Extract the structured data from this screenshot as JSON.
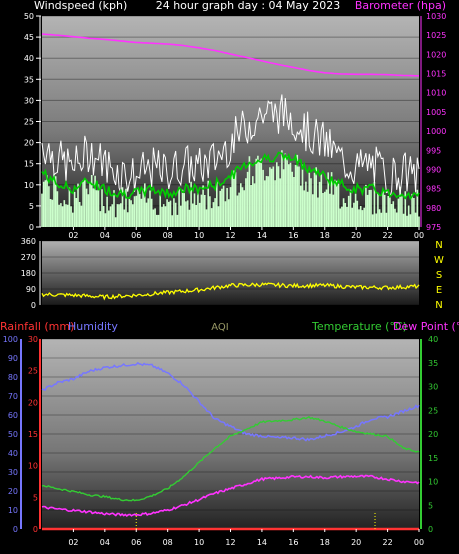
{
  "colors": {
    "wind_axis": "#ffffff",
    "baro": "#ff33ff",
    "wind_gust": "#ffffff",
    "wind_avg": "#00cc00",
    "wind_fill": "#ccffcc",
    "dir": "#ffff00",
    "rain": "#ff3333",
    "humidity": "#7777ff",
    "aqi": "#999966",
    "temp": "#33cc33",
    "dew": "#ff33ff"
  },
  "header": {
    "title": "24 hour graph day : 04 May 2023",
    "wind_label": "Windspeed (kph)",
    "baro_label": "Barometer (hpa)"
  },
  "footer": {
    "rain_label": "Rainfall (mm)",
    "hum_label": "Humidity",
    "aqi_label": "AQI",
    "temp_label": "Temperature (°C)",
    "dew_label": "Dew Point (°C"
  },
  "compass": [
    "N",
    "W",
    "S",
    "E",
    "N"
  ],
  "chart_data": [
    {
      "type": "line",
      "panel": "wind-barometer",
      "title": "24 hour graph day : 04 May 2023",
      "x_ticks": [
        "02",
        "04",
        "06",
        "08",
        "10",
        "12",
        "14",
        "16",
        "18",
        "20",
        "22",
        "00"
      ],
      "left_axis": {
        "label": "Windspeed (kph)",
        "range": [
          0,
          50
        ],
        "ticks": [
          0,
          5,
          10,
          15,
          20,
          25,
          30,
          35,
          40,
          45,
          50
        ]
      },
      "right_axis": {
        "label": "Barometer (hpa)",
        "range": [
          975,
          1030
        ],
        "ticks": [
          975,
          980,
          985,
          990,
          995,
          1000,
          1005,
          1010,
          1015,
          1020,
          1025,
          1030
        ]
      },
      "x_hours": [
        0,
        1,
        2,
        3,
        4,
        5,
        6,
        7,
        8,
        9,
        10,
        11,
        12,
        13,
        14,
        15,
        16,
        17,
        18,
        19,
        20,
        21,
        22,
        23,
        24
      ],
      "series": [
        {
          "name": "Barometer (hpa)",
          "axis": "right",
          "values": [
            1025.3,
            1025,
            1024.6,
            1024.2,
            1023.9,
            1023.5,
            1023.1,
            1022.9,
            1022.7,
            1022.3,
            1021.7,
            1021,
            1020.1,
            1019.2,
            1018.3,
            1017.4,
            1016.6,
            1015.8,
            1015.2,
            1014.9,
            1014.8,
            1014.8,
            1014.7,
            1014.5,
            1014.4
          ]
        },
        {
          "name": "Gust",
          "axis": "left",
          "values": [
            20,
            16,
            14,
            18,
            15,
            13,
            12,
            14,
            13,
            15,
            14,
            16,
            20,
            24,
            27,
            27,
            26,
            22,
            20,
            16,
            14,
            15,
            12,
            13,
            12
          ]
        },
        {
          "name": "Average",
          "axis": "left",
          "values": [
            13,
            10,
            9,
            11,
            9,
            8,
            8,
            9,
            8,
            9,
            9,
            10,
            12,
            15,
            16,
            17,
            16,
            14,
            12,
            10,
            9,
            9,
            8,
            8,
            7
          ]
        }
      ]
    },
    {
      "type": "line",
      "panel": "wind-direction",
      "left_axis": {
        "range": [
          0,
          360
        ],
        "ticks": [
          0,
          90,
          180,
          270,
          360
        ]
      },
      "right_axis": {
        "labels": [
          "N",
          "W",
          "S",
          "E",
          "N"
        ]
      },
      "x_hours": [
        0,
        2,
        4,
        6,
        8,
        10,
        12,
        14,
        16,
        18,
        20,
        22,
        24
      ],
      "series": [
        {
          "name": "Direction",
          "values": [
            60,
            55,
            45,
            55,
            70,
            85,
            110,
            115,
            108,
            110,
            100,
            98,
            105
          ]
        }
      ]
    },
    {
      "type": "line",
      "panel": "temperature-humidity",
      "x_ticks": [
        "02",
        "04",
        "06",
        "08",
        "10",
        "12",
        "14",
        "16",
        "18",
        "20",
        "22",
        "00"
      ],
      "left_axis_1": {
        "label": "Rainfall (mm)",
        "range": [
          0,
          100
        ],
        "ticks": [
          0,
          10,
          20,
          30,
          40,
          50,
          60,
          70,
          80,
          90,
          100
        ]
      },
      "left_axis_2": {
        "label": "Humidity",
        "range": [
          0,
          30
        ],
        "ticks": [
          0,
          5,
          10,
          15,
          20,
          25,
          30
        ]
      },
      "right_axis": {
        "label": "Temperature (°C)",
        "range": [
          0,
          40
        ],
        "ticks": [
          0,
          5,
          10,
          15,
          20,
          25,
          30,
          35,
          40
        ]
      },
      "x_hours": [
        0,
        1,
        2,
        3,
        4,
        5,
        6,
        7,
        8,
        9,
        10,
        11,
        12,
        13,
        14,
        15,
        16,
        17,
        18,
        19,
        20,
        21,
        22,
        23,
        24
      ],
      "series": [
        {
          "name": "Humidity",
          "axis": "left_axis_1",
          "values": [
            73,
            77,
            79,
            83,
            85,
            86,
            87,
            86,
            82,
            76,
            67,
            58,
            54,
            50,
            49,
            48,
            48,
            47,
            49,
            51,
            54,
            58,
            59,
            62,
            65
          ]
        },
        {
          "name": "Temperature (°C)",
          "axis": "right",
          "values": [
            9.2,
            8.5,
            7.9,
            7.2,
            6.8,
            6.2,
            6,
            7,
            8.5,
            11,
            14,
            17,
            19.5,
            21,
            22.5,
            22.8,
            23,
            23.5,
            22.7,
            21.5,
            20.5,
            20,
            19.5,
            17,
            16.2
          ]
        },
        {
          "name": "Dew Point (°C",
          "axis": "right",
          "values": [
            4.6,
            4.2,
            3.9,
            3.6,
            3.2,
            3,
            3,
            3.3,
            4,
            5,
            6.2,
            7.5,
            8.5,
            9.5,
            10.5,
            10.7,
            11,
            11,
            10.8,
            11,
            11.1,
            11,
            10.5,
            10,
            9.8
          ]
        },
        {
          "name": "Rainfall (mm)",
          "axis": "left_axis_1",
          "values": [
            0,
            0,
            0,
            0,
            0,
            0,
            0,
            0,
            0,
            0,
            0,
            0,
            0,
            0,
            0,
            0,
            0,
            0,
            0,
            0,
            0,
            0,
            0,
            0,
            0
          ]
        }
      ]
    }
  ]
}
